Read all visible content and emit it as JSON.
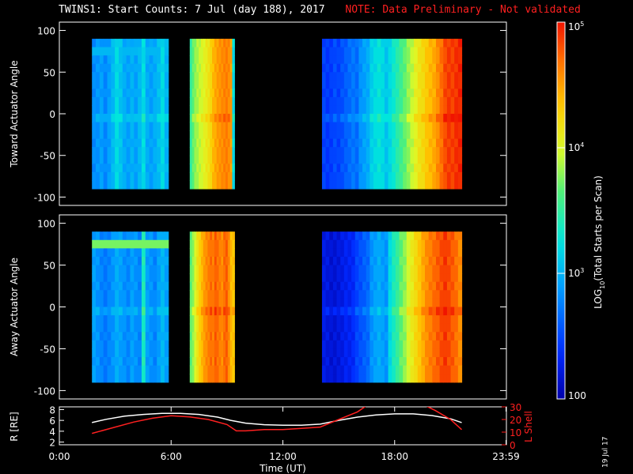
{
  "header": {
    "title": "TWINS1: Start Counts:  7 Jul (day 188), 2017",
    "note": "NOTE: Data Preliminary - Not validated"
  },
  "colorbar": {
    "label": "LOG10(Total Starts per Scan)",
    "ticks": [
      {
        "value": 100,
        "label": "100"
      },
      {
        "value": 1000,
        "label": "10^3"
      },
      {
        "value": 10000,
        "label": "10^4"
      },
      {
        "value": 100000,
        "label": "10^5"
      }
    ],
    "range": [
      100,
      100000
    ]
  },
  "stamp": "19 Jul 17",
  "chart_data": [
    {
      "type": "heatmap",
      "name": "toward",
      "ylabel": "Toward Actuator Angle",
      "ylim": [
        -110,
        110
      ],
      "yticks": [
        100,
        50,
        0,
        -50,
        -100
      ],
      "xlim": [
        0,
        24
      ],
      "angle_range": [
        -90,
        90
      ],
      "segments": [
        {
          "start_hr": 1.75,
          "end_hr": 5.85,
          "profile": [
            [
              0.27,
              0.28,
              0.3,
              0.26,
              0.3,
              0.34,
              0.4,
              0.36,
              0.32,
              0.3,
              0.33,
              0.3,
              0.34,
              0.4,
              0.32,
              0.3,
              0.32,
              0.35,
              0.4,
              0.33
            ]
          ],
          "band_rows": {
            "top": 0.34,
            "mid": 0.4
          }
        },
        {
          "start_hr": 7.0,
          "end_hr": 9.4,
          "profile": [
            [
              0.5,
              0.56,
              0.6,
              0.62,
              0.64,
              0.66,
              0.68,
              0.7,
              0.72,
              0.75,
              0.8,
              0.82,
              0.84,
              0.85,
              0.86,
              0.87,
              0.88,
              0.86,
              0.84,
              0.4
            ]
          ]
        },
        {
          "start_hr": 14.1,
          "end_hr": 21.6,
          "profile": [
            [
              0.16,
              0.14,
              0.15,
              0.17,
              0.16,
              0.18,
              0.2,
              0.22,
              0.24,
              0.22,
              0.28,
              0.3,
              0.32,
              0.38,
              0.4,
              0.42,
              0.4,
              0.36,
              0.4,
              0.44,
              0.48,
              0.52,
              0.56,
              0.6,
              0.64,
              0.68,
              0.72,
              0.74,
              0.78,
              0.8,
              0.82,
              0.86,
              0.9,
              0.94,
              0.96,
              0.95,
              0.97,
              0.98
            ]
          ]
        }
      ]
    },
    {
      "type": "heatmap",
      "name": "away",
      "ylabel": "Away Actuator Angle",
      "ylim": [
        -110,
        110
      ],
      "yticks": [
        100,
        50,
        0,
        -50,
        -100
      ],
      "xlim": [
        0,
        24
      ],
      "angle_range": [
        -90,
        90
      ],
      "segments": [
        {
          "start_hr": 1.75,
          "end_hr": 5.85,
          "profile": [
            [
              0.3,
              0.28,
              0.26,
              0.24,
              0.26,
              0.28,
              0.32,
              0.3,
              0.28,
              0.26,
              0.3,
              0.28,
              0.26,
              0.46,
              0.3,
              0.28,
              0.26,
              0.3,
              0.34,
              0.3
            ]
          ],
          "band_rows": {
            "top": 0.58,
            "mid": 0.38
          }
        },
        {
          "start_hr": 7.0,
          "end_hr": 9.4,
          "profile": [
            [
              0.56,
              0.6,
              0.66,
              0.72,
              0.76,
              0.8,
              0.84,
              0.86,
              0.88,
              0.9,
              0.88,
              0.92,
              0.9,
              0.88,
              0.86,
              0.9,
              0.92,
              0.86,
              0.8,
              0.78
            ]
          ]
        },
        {
          "start_hr": 14.1,
          "end_hr": 21.6,
          "profile": [
            [
              0.08,
              0.07,
              0.06,
              0.06,
              0.07,
              0.08,
              0.1,
              0.1,
              0.12,
              0.16,
              0.18,
              0.2,
              0.22,
              0.28,
              0.3,
              0.32,
              0.3,
              0.28,
              0.4,
              0.46,
              0.5,
              0.56,
              0.6,
              0.66,
              0.7,
              0.74,
              0.78,
              0.82,
              0.86,
              0.88,
              0.9,
              0.92,
              0.94,
              0.96,
              0.94,
              0.92,
              0.9,
              0.86
            ]
          ]
        }
      ]
    },
    {
      "type": "line",
      "name": "orbit",
      "ylabel_left": "R [RE]",
      "ylabel_right": "L Shell",
      "ylim_left": [
        1.5,
        8.5
      ],
      "yticks_left": [
        2,
        4,
        6,
        8
      ],
      "ylim_right": [
        0,
        30
      ],
      "yticks_right": [
        0,
        10,
        20,
        30
      ],
      "xlabel": "Time (UT)",
      "xticks": [
        {
          "hr": 0,
          "label": "0:00"
        },
        {
          "hr": 6,
          "label": "6:00"
        },
        {
          "hr": 12,
          "label": "12:00"
        },
        {
          "hr": 18,
          "label": "18:00"
        },
        {
          "hr": 23.98,
          "label": "23:59"
        }
      ],
      "series": [
        {
          "axis": "left",
          "color": "#ffffff",
          "x": [
            1.75,
            2.5,
            3.5,
            4.5,
            5.5,
            6.5,
            7.5,
            8.5,
            9.2,
            10,
            11,
            12,
            13,
            14,
            15,
            16,
            17,
            18,
            19,
            20,
            21,
            21.6
          ],
          "y": [
            5.6,
            6.2,
            6.8,
            7.1,
            7.3,
            7.3,
            7.1,
            6.6,
            6.0,
            5.5,
            5.2,
            5.1,
            5.1,
            5.3,
            6.0,
            6.6,
            7.0,
            7.2,
            7.2,
            6.9,
            6.3,
            5.6
          ]
        },
        {
          "axis": "right",
          "color": "#ff2020",
          "x": [
            1.75,
            3,
            4,
            5,
            6,
            7,
            8,
            9,
            9.5,
            10,
            11,
            12,
            13,
            14,
            15,
            16,
            16.6,
            19.5,
            20.2,
            21,
            21.6
          ],
          "y": [
            9,
            14,
            18,
            21,
            23,
            22,
            20,
            16,
            11,
            11,
            12,
            12,
            13,
            14,
            20,
            26,
            32,
            32,
            27,
            20,
            12
          ]
        }
      ]
    }
  ]
}
